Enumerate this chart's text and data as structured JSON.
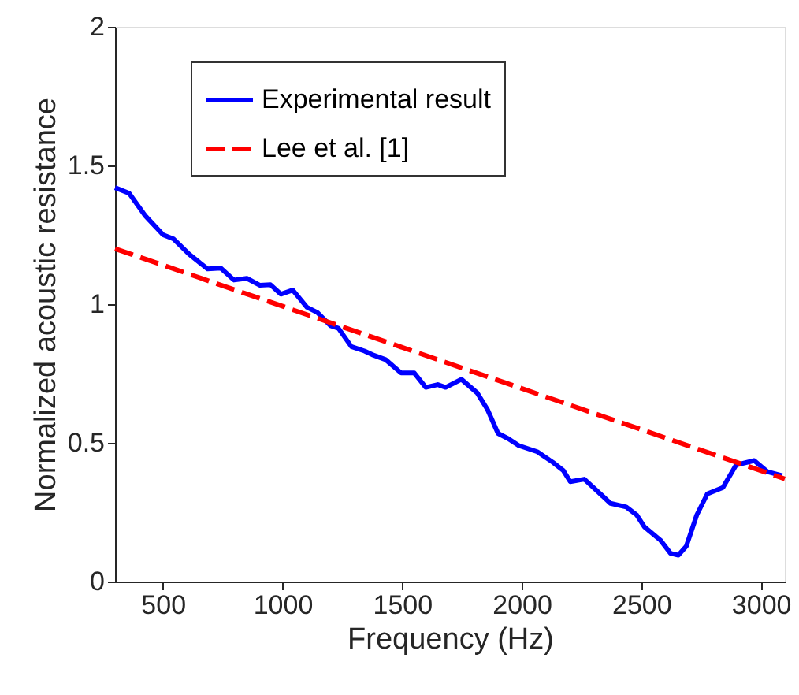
{
  "chart_data": {
    "type": "line",
    "xlabel": "Frequency (Hz)",
    "ylabel": "Normalized acoustic resistance",
    "xlim": [
      300,
      3100
    ],
    "xticks": [
      500,
      1000,
      1500,
      2000,
      2500,
      3000
    ],
    "ylim": [
      0,
      2
    ],
    "yticks": [
      0,
      0.5,
      1,
      1.5,
      2
    ],
    "grid": false,
    "legend": "top left",
    "series": [
      {
        "name": "Experimental result",
        "color": "#0000ff",
        "line_style": "solid",
        "x": [
          300,
          359,
          425,
          501,
          545,
          610,
          687,
          742,
          797,
          851,
          906,
          950,
          993,
          1043,
          1102,
          1146,
          1201,
          1234,
          1288,
          1343,
          1375,
          1431,
          1496,
          1551,
          1599,
          1649,
          1682,
          1748,
          1814,
          1857,
          1901,
          1944,
          1988,
          2065,
          2130,
          2174,
          2203,
          2262,
          2316,
          2371,
          2437,
          2481,
          2513,
          2579,
          2622,
          2655,
          2688,
          2732,
          2776,
          2841,
          2896,
          2972,
          3027,
          3089
        ],
        "values": [
          1.42,
          1.4,
          1.32,
          1.25,
          1.235,
          1.18,
          1.127,
          1.13,
          1.087,
          1.093,
          1.068,
          1.07,
          1.036,
          1.051,
          0.989,
          0.97,
          0.922,
          0.913,
          0.847,
          0.831,
          0.818,
          0.8,
          0.752,
          0.752,
          0.7,
          0.71,
          0.7,
          0.729,
          0.68,
          0.62,
          0.534,
          0.515,
          0.49,
          0.468,
          0.43,
          0.4,
          0.36,
          0.369,
          0.326,
          0.282,
          0.269,
          0.24,
          0.197,
          0.15,
          0.102,
          0.095,
          0.127,
          0.24,
          0.316,
          0.339,
          0.42,
          0.436,
          0.396,
          0.382
        ]
      },
      {
        "name": "Lee et al. [1]",
        "color": "#ff0000",
        "line_style": "dashed",
        "x": [
          300,
          3100
        ],
        "values": [
          1.2,
          0.37
        ]
      }
    ]
  }
}
